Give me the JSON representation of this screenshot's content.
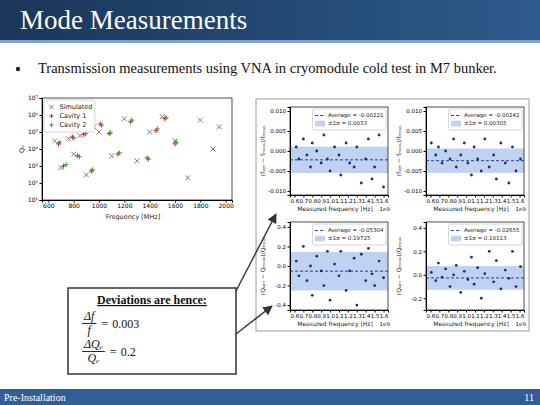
{
  "slide": {
    "title": "Mode Measurements",
    "bullet_text": "Transmission measurements using VNA in cryomodule cold test in M7 bunker.",
    "footer": "Pre-Installation",
    "page": 11
  },
  "deviations": {
    "heading": "Deviations are hence:",
    "items": [
      {
        "numerator": "Δf",
        "denominator": "f",
        "relation": "=",
        "value": 0.003
      },
      {
        "numerator": "ΔQₑ",
        "denominator": "Qₑ",
        "relation": "=",
        "value": 0.2
      }
    ]
  },
  "chart_data": [
    {
      "type": "scatter",
      "x_label": "Frequency [MHz]",
      "y_label": "Qₑ",
      "xlim": [
        550,
        2050
      ],
      "ylim": [
        10,
        10000000
      ],
      "xticks": [
        600,
        800,
        1000,
        1200,
        1400,
        1600,
        1800,
        2000
      ],
      "yticks": [
        {
          "value": 10,
          "label": "10¹"
        },
        {
          "value": 100,
          "label": "10²"
        },
        {
          "value": 1000,
          "label": "10³"
        },
        {
          "value": 10000,
          "label": "10⁴"
        },
        {
          "value": 100000,
          "label": "10⁵"
        },
        {
          "value": 1000000,
          "label": "10⁶"
        },
        {
          "value": 10000000,
          "label": "10⁷"
        }
      ],
      "log": "y",
      "grid": false,
      "legend": "upper left",
      "series": [
        {
          "name": "Simulated",
          "color": "#808080",
          "marker": "x",
          "x": [
            650,
            700,
            760,
            800,
            850,
            900,
            960,
            1000,
            1100,
            1200,
            1300,
            1400,
            1500,
            1600,
            1700,
            1800,
            1900,
            1950
          ],
          "values": [
            30000.0,
            800,
            40000.0,
            5000.0,
            60000.0,
            300,
            200000.0,
            100000.0,
            4000.0,
            600000.0,
            2000.0,
            100000.0,
            800000.0,
            30000.0,
            200,
            500000.0,
            10000.0,
            200000.0
          ]
        },
        {
          "name": "Cavity 1",
          "color": "#d62728",
          "marker": "+",
          "x": [
            680,
            720,
            790,
            830,
            880,
            940,
            1010,
            1080,
            1150,
            1250,
            1380,
            1450,
            1520,
            1600
          ],
          "values": [
            20000.0,
            1000.0,
            50000.0,
            4000.0,
            70000.0,
            500,
            300000.0,
            80000.0,
            5000.0,
            400000.0,
            3000.0,
            120000.0,
            600000.0,
            20000.0
          ]
        },
        {
          "name": "Cavity 2",
          "color": "#2ca02c",
          "marker": "+",
          "x": [
            690,
            740,
            800,
            845,
            895,
            950,
            1020,
            1090,
            1160,
            1260,
            1390,
            1460,
            1530,
            1610
          ],
          "values": [
            25000.0,
            1200.0,
            45000.0,
            3500.0,
            80000.0,
            600,
            250000.0,
            90000.0,
            6000.0,
            500000.0,
            2500.0,
            150000.0,
            700000.0,
            25000.0
          ]
        }
      ]
    },
    {
      "type": "scatter",
      "x_label": "Measured frequency [Hz]",
      "y_label": "(fₛᵢₘ − fₘₑₐₛ)/fₘₑₐₛ",
      "annotations": [
        "1e9"
      ],
      "xlim": [
        0.55,
        1.65
      ],
      "ylim": [
        -0.011,
        0.011
      ],
      "xticks": [
        0.6,
        0.7,
        0.8,
        0.9,
        {
          "value": 1,
          "label": "1.0"
        },
        1.1,
        1.2,
        1.3,
        1.4,
        1.5,
        1.6
      ],
      "yticks": [
        {
          "value": -0.01,
          "label": "-0.010"
        },
        -0.005,
        {
          "value": 0,
          "label": "0.000"
        },
        0.005,
        {
          "value": 0.01,
          "label": "0.010"
        }
      ],
      "grid": false,
      "legend": "upper right",
      "average": {
        "value": -0.00221,
        "label": "Average = -0.00221"
      },
      "band": {
        "value": 0.0033,
        "label": "±1σ = 0.0033"
      },
      "series": [
        {
          "color": "#1c2a8c",
          "marker": "o",
          "x": [
            0.62,
            0.65,
            0.7,
            0.74,
            0.78,
            0.8,
            0.85,
            0.9,
            0.93,
            0.97,
            1.0,
            1.05,
            1.1,
            1.12,
            1.18,
            1.22,
            1.27,
            1.3,
            1.35,
            1.4,
            1.43,
            1.47,
            1.5,
            1.55,
            1.6
          ],
          "values": [
            0.001,
            -0.002,
            0.003,
            -0.001,
            -0.004,
            0.002,
            0.0,
            -0.003,
            0.004,
            -0.002,
            -0.005,
            0.001,
            -0.001,
            -0.006,
            0.002,
            -0.003,
            -0.004,
            0.001,
            -0.008,
            -0.002,
            0.003,
            -0.007,
            -0.004,
            0.004,
            -0.009
          ]
        }
      ]
    },
    {
      "type": "scatter",
      "x_label": "Measured frequency [Hz]",
      "y_label": "(fₛᵢₘ − fₘₑₐₛ)/fₘₑₐₛ",
      "annotations": [
        "1e9"
      ],
      "xlim": [
        0.55,
        1.65
      ],
      "ylim": [
        -0.011,
        0.011
      ],
      "xticks": [
        0.6,
        0.7,
        0.8,
        0.9,
        {
          "value": 1,
          "label": "1.0"
        },
        1.1,
        1.2,
        1.3,
        1.4,
        1.5,
        1.6
      ],
      "yticks": [
        {
          "value": -0.01,
          "label": "-0.010"
        },
        -0.005,
        {
          "value": 0,
          "label": "0.000"
        },
        0.005,
        {
          "value": 0.01,
          "label": "0.010"
        }
      ],
      "grid": false,
      "legend": "upper right",
      "average": {
        "value": -0.00242,
        "label": "Average = -0.00242"
      },
      "band": {
        "value": 0.00305,
        "label": "±1σ = 0.00305"
      },
      "series": [
        {
          "color": "#1c2a8c",
          "marker": "o",
          "x": [
            0.61,
            0.66,
            0.69,
            0.73,
            0.77,
            0.82,
            0.86,
            0.89,
            0.94,
            0.98,
            1.02,
            1.06,
            1.09,
            1.13,
            1.17,
            1.21,
            1.26,
            1.31,
            1.34,
            1.39,
            1.44,
            1.48,
            1.52,
            1.56,
            1.61
          ],
          "values": [
            0.002,
            -0.001,
            0.001,
            -0.003,
            0.0,
            -0.002,
            0.003,
            -0.004,
            -0.001,
            0.002,
            -0.003,
            -0.006,
            0.001,
            -0.002,
            -0.005,
            0.003,
            -0.004,
            -0.001,
            -0.007,
            0.002,
            -0.003,
            -0.008,
            0.001,
            -0.005,
            -0.002
          ]
        }
      ]
    },
    {
      "type": "scatter",
      "x_label": "Measured frequency [Hz]",
      "y_label": "(Qₛᵢₘ − Qₘₑₐₛ)/Qₘₑₐₛ",
      "annotations": [
        "1e9"
      ],
      "xlim": [
        0.55,
        1.65
      ],
      "ylim": [
        -0.45,
        0.45
      ],
      "xticks": [
        0.6,
        0.7,
        0.8,
        0.9,
        {
          "value": 1,
          "label": "1.0"
        },
        1.1,
        1.2,
        1.3,
        1.4,
        1.5,
        1.6
      ],
      "yticks": [
        -0.4,
        -0.2,
        {
          "value": 0,
          "label": "0.0"
        },
        0.2,
        0.4
      ],
      "grid": false,
      "legend": "upper right",
      "average": {
        "value": -0.05304,
        "label": "Average = -0.05304"
      },
      "band": {
        "value": 0.19725,
        "label": "±1σ = 0.19725"
      },
      "series": [
        {
          "color": "#1c2a8c",
          "marker": "o",
          "x": [
            0.62,
            0.65,
            0.7,
            0.74,
            0.78,
            0.8,
            0.85,
            0.9,
            0.93,
            0.97,
            1.0,
            1.05,
            1.1,
            1.12,
            1.18,
            1.22,
            1.27,
            1.3,
            1.35,
            1.4,
            1.43,
            1.47,
            1.5,
            1.55,
            1.6
          ],
          "values": [
            0.05,
            -0.1,
            0.2,
            -0.15,
            0.0,
            -0.3,
            0.1,
            -0.05,
            -0.2,
            0.15,
            -0.35,
            0.02,
            -0.1,
            0.15,
            -0.25,
            -0.05,
            0.08,
            -0.4,
            0.12,
            -0.15,
            0.18,
            -0.08,
            -0.2,
            0.05,
            -0.12
          ]
        }
      ]
    },
    {
      "type": "scatter",
      "x_label": "Measured frequency [Hz]",
      "y_label": "(Qₛᵢₘ − Qₘₑₐₛ)/Qₘₑₐₛ",
      "annotations": [
        "1e9"
      ],
      "xlim": [
        0.55,
        1.65
      ],
      "ylim": [
        -0.3,
        0.45
      ],
      "xticks": [
        0.6,
        0.7,
        0.8,
        0.9,
        {
          "value": 1,
          "label": "1.0"
        },
        1.1,
        1.2,
        1.3,
        1.4,
        1.5,
        1.6
      ],
      "yticks": [
        -0.2,
        {
          "value": 0,
          "label": "0.0"
        },
        0.2,
        0.4
      ],
      "grid": false,
      "legend": "upper right",
      "average": {
        "value": -0.02655,
        "label": "Average = -0.02655"
      },
      "band": {
        "value": 0.10113,
        "label": "±1σ = 0.10113"
      },
      "series": [
        {
          "color": "#1c2a8c",
          "marker": "o",
          "x": [
            0.61,
            0.66,
            0.69,
            0.73,
            0.77,
            0.82,
            0.86,
            0.89,
            0.94,
            0.98,
            1.02,
            1.06,
            1.09,
            1.13,
            1.17,
            1.21,
            1.26,
            1.31,
            1.34,
            1.39,
            1.44,
            1.48,
            1.52,
            1.56,
            1.61
          ],
          "values": [
            0.02,
            -0.05,
            0.1,
            -0.02,
            0.05,
            -0.1,
            0.0,
            0.08,
            -0.15,
            0.03,
            -0.04,
            0.15,
            -0.08,
            0.06,
            -0.2,
            0.01,
            0.2,
            -0.06,
            0.12,
            -0.12,
            0.04,
            -0.03,
            0.2,
            -0.1,
            0.07
          ]
        }
      ]
    }
  ]
}
